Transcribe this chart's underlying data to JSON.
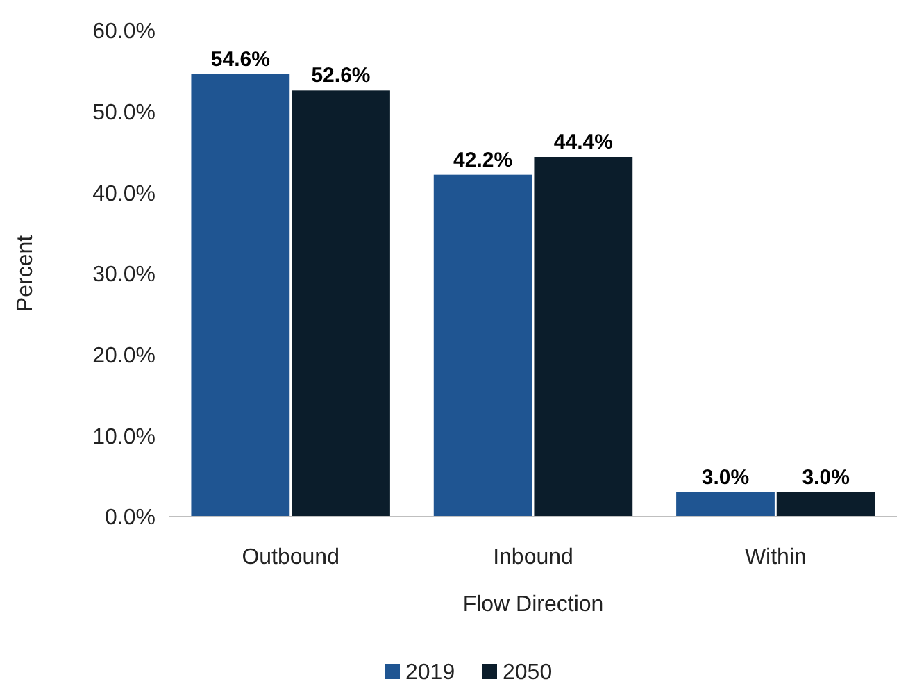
{
  "chart_data": {
    "type": "bar",
    "xlabel": "Flow Direction",
    "ylabel": "Percent",
    "categories": [
      "Outbound",
      "Inbound",
      "Within"
    ],
    "series": [
      {
        "name": "2019",
        "color": "#1f5592",
        "values": [
          54.6,
          42.2,
          3.0
        ],
        "value_labels": [
          "54.6%",
          "42.2%",
          "3.0%"
        ]
      },
      {
        "name": "2050",
        "color": "#0b1d2b",
        "values": [
          52.6,
          44.4,
          3.0
        ],
        "value_labels": [
          "52.6%",
          "44.4%",
          "3.0%"
        ]
      }
    ],
    "ylim": [
      0,
      60
    ],
    "yticks": [
      {
        "value": 0,
        "label": "0.0%"
      },
      {
        "value": 10,
        "label": "10.0%"
      },
      {
        "value": 20,
        "label": "20.0%"
      },
      {
        "value": 30,
        "label": "30.0%"
      },
      {
        "value": 40,
        "label": "40.0%"
      },
      {
        "value": 50,
        "label": "50.0%"
      },
      {
        "value": 60,
        "label": "60.0%"
      }
    ],
    "grid": false,
    "legend": "bottom"
  }
}
